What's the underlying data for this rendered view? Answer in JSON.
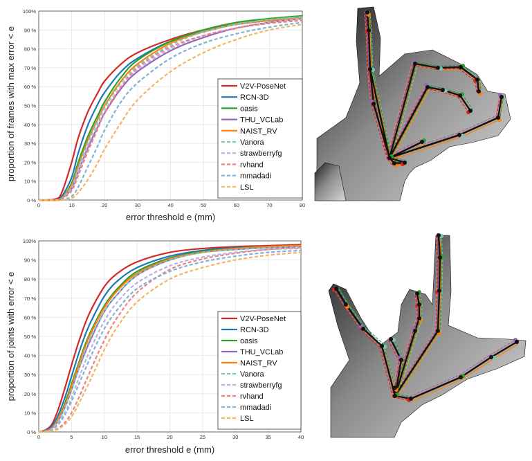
{
  "chart_data": [
    {
      "type": "line",
      "xlabel": "error threshold e (mm)",
      "ylabel": "proportion of frames with max error < e",
      "xlim": [
        0,
        80
      ],
      "ylim": [
        0,
        100
      ],
      "x_ticks": [
        "0",
        "10",
        "20",
        "30",
        "40",
        "50",
        "60",
        "70",
        "80"
      ],
      "y_ticks": [
        "0 %",
        "10 %",
        "20 %",
        "30 %",
        "40 %",
        "50 %",
        "60 %",
        "70 %",
        "80 %",
        "90 %",
        "100%"
      ],
      "grid": true,
      "legend_position": "bottom-right",
      "series": [
        {
          "name": "V2V-PoseNet",
          "color": "#d62728",
          "dash": "solid",
          "x": [
            0,
            5,
            7,
            10,
            12,
            15,
            18,
            20,
            25,
            30,
            40,
            50,
            60,
            70,
            80
          ],
          "y": [
            0,
            0.5,
            4,
            20,
            33,
            47,
            57,
            63,
            72,
            78,
            85,
            90,
            93,
            95,
            96
          ]
        },
        {
          "name": "RCN-3D",
          "color": "#1f77b4",
          "dash": "solid",
          "x": [
            0,
            5,
            7,
            10,
            12,
            15,
            18,
            20,
            25,
            30,
            40,
            50,
            60,
            70,
            80
          ],
          "y": [
            0,
            0,
            2,
            12,
            25,
            40,
            51,
            57,
            68,
            75,
            84,
            89,
            93,
            95,
            96
          ]
        },
        {
          "name": "oasis",
          "color": "#2ca02c",
          "dash": "solid",
          "x": [
            0,
            5,
            7,
            10,
            12,
            15,
            18,
            20,
            25,
            30,
            40,
            50,
            60,
            70,
            80
          ],
          "y": [
            0,
            0,
            1,
            9,
            20,
            34,
            45,
            52,
            65,
            74,
            84,
            90,
            94,
            96,
            97.5
          ]
        },
        {
          "name": "THU_VCLab",
          "color": "#9467bd",
          "dash": "solid",
          "x": [
            0,
            5,
            7,
            10,
            12,
            15,
            18,
            20,
            25,
            30,
            40,
            50,
            60,
            70,
            80
          ],
          "y": [
            0,
            0,
            1,
            6,
            15,
            28,
            39,
            46,
            59,
            68,
            79,
            86,
            91,
            94,
            96
          ]
        },
        {
          "name": "NAIST_RV",
          "color": "#ff7f0e",
          "dash": "solid",
          "x": [
            0,
            5,
            7,
            10,
            12,
            15,
            18,
            20,
            25,
            30,
            40,
            50,
            60,
            70,
            80
          ],
          "y": [
            0,
            0,
            1,
            8,
            18,
            32,
            43,
            50,
            63,
            72,
            83,
            89,
            93,
            95,
            96.5
          ]
        },
        {
          "name": "Vanora",
          "color": "#76c7c0",
          "dash": "dashed",
          "x": [
            0,
            5,
            7,
            10,
            12,
            15,
            18,
            20,
            25,
            30,
            40,
            50,
            60,
            70,
            80
          ],
          "y": [
            0,
            0,
            1,
            7,
            17,
            31,
            42,
            49,
            62,
            71,
            82,
            89,
            93,
            95.5,
            97
          ]
        },
        {
          "name": "strawberryfg",
          "color": "#b9b0dd",
          "dash": "dashed",
          "x": [
            0,
            5,
            7,
            10,
            12,
            15,
            18,
            20,
            25,
            30,
            40,
            50,
            60,
            70,
            80
          ],
          "y": [
            0,
            0,
            0.5,
            6,
            15,
            29,
            40,
            47,
            60,
            69,
            80,
            87,
            91,
            94,
            96
          ]
        },
        {
          "name": "rvhand",
          "color": "#f08080",
          "dash": "dashed",
          "x": [
            0,
            5,
            7,
            10,
            12,
            15,
            18,
            20,
            25,
            30,
            40,
            50,
            60,
            70,
            80
          ],
          "y": [
            0,
            0,
            0.5,
            5,
            13,
            26,
            38,
            46,
            60,
            70,
            81,
            87,
            91,
            93.5,
            95
          ]
        },
        {
          "name": "mmadadi",
          "color": "#7fb2d8",
          "dash": "dashed",
          "x": [
            0,
            5,
            7,
            10,
            12,
            15,
            18,
            20,
            25,
            30,
            40,
            50,
            60,
            70,
            80
          ],
          "y": [
            0,
            0,
            0,
            2,
            7,
            18,
            29,
            37,
            52,
            62,
            75,
            83,
            88,
            91.5,
            94
          ]
        },
        {
          "name": "LSL",
          "color": "#f5b461",
          "dash": "dashed",
          "x": [
            0,
            5,
            7,
            10,
            12,
            15,
            18,
            20,
            25,
            30,
            40,
            50,
            60,
            70,
            80
          ],
          "y": [
            0,
            0,
            0,
            1,
            4,
            11,
            20,
            27,
            41,
            53,
            68,
            78,
            85,
            90,
            93
          ]
        }
      ]
    },
    {
      "type": "line",
      "xlabel": "error threshold e (mm)",
      "ylabel": "proportion of joints with error < e",
      "xlim": [
        0,
        40
      ],
      "ylim": [
        0,
        100
      ],
      "x_ticks": [
        "0",
        "5",
        "10",
        "15",
        "20",
        "25",
        "30",
        "35",
        "40"
      ],
      "y_ticks": [
        "0 %",
        "10 %",
        "20 %",
        "30 %",
        "40 %",
        "50 %",
        "60 %",
        "70 %",
        "80 %",
        "90 %",
        "100%"
      ],
      "grid": true,
      "legend_position": "bottom-right",
      "series": [
        {
          "name": "V2V-PoseNet",
          "color": "#d62728",
          "dash": "solid",
          "x": [
            0,
            1,
            2,
            3,
            4,
            5,
            6,
            7,
            8,
            10,
            12,
            15,
            20,
            25,
            30,
            35,
            40
          ],
          "y": [
            0,
            1,
            4,
            12,
            23,
            35,
            46,
            56,
            64,
            76,
            83,
            89,
            94,
            96,
            97,
            97.5,
            98
          ]
        },
        {
          "name": "RCN-3D",
          "color": "#1f77b4",
          "dash": "solid",
          "x": [
            0,
            1,
            2,
            3,
            4,
            5,
            6,
            7,
            8,
            10,
            12,
            15,
            20,
            25,
            30,
            35,
            40
          ],
          "y": [
            0,
            0.5,
            3,
            9,
            18,
            29,
            40,
            50,
            58,
            71,
            79,
            86,
            92,
            95,
            96.5,
            97,
            97.5
          ]
        },
        {
          "name": "oasis",
          "color": "#2ca02c",
          "dash": "solid",
          "x": [
            0,
            1,
            2,
            3,
            4,
            5,
            6,
            7,
            8,
            10,
            12,
            15,
            20,
            25,
            30,
            35,
            40
          ],
          "y": [
            0,
            0.5,
            2,
            7,
            15,
            25,
            35,
            45,
            53,
            66,
            75,
            84,
            91,
            94.5,
            96,
            97,
            97.5
          ]
        },
        {
          "name": "THU_VCLab",
          "color": "#9467bd",
          "dash": "solid",
          "x": [
            0,
            1,
            2,
            3,
            4,
            5,
            6,
            7,
            8,
            10,
            12,
            15,
            20,
            25,
            30,
            35,
            40
          ],
          "y": [
            0,
            0.5,
            2,
            6,
            13,
            22,
            32,
            41,
            49,
            63,
            72,
            82,
            90,
            94,
            95.5,
            96.5,
            97
          ]
        },
        {
          "name": "NAIST_RV",
          "color": "#ff7f0e",
          "dash": "solid",
          "x": [
            0,
            1,
            2,
            3,
            4,
            5,
            6,
            7,
            8,
            10,
            12,
            15,
            20,
            25,
            30,
            35,
            40
          ],
          "y": [
            0,
            0.5,
            2,
            7,
            14,
            24,
            34,
            44,
            52,
            65,
            74,
            83,
            90.5,
            94,
            96,
            97,
            97.5
          ]
        },
        {
          "name": "Vanora",
          "color": "#76c7c0",
          "dash": "dashed",
          "x": [
            0,
            1,
            2,
            3,
            4,
            5,
            6,
            7,
            8,
            10,
            12,
            15,
            20,
            25,
            30,
            35,
            40
          ],
          "y": [
            0,
            0.5,
            2,
            6,
            13,
            22,
            32,
            42,
            50,
            63,
            72,
            82,
            90,
            94,
            95.5,
            96.5,
            97
          ]
        },
        {
          "name": "strawberryfg",
          "color": "#b9b0dd",
          "dash": "dashed",
          "x": [
            0,
            1,
            2,
            3,
            4,
            5,
            6,
            7,
            8,
            10,
            12,
            15,
            20,
            25,
            30,
            35,
            40
          ],
          "y": [
            0,
            0.5,
            1.5,
            5,
            10,
            18,
            27,
            36,
            44,
            58,
            68,
            78,
            87,
            91.5,
            94,
            95.5,
            96
          ]
        },
        {
          "name": "rvhand",
          "color": "#f08080",
          "dash": "dashed",
          "x": [
            0,
            1,
            2,
            3,
            4,
            5,
            6,
            7,
            8,
            10,
            12,
            15,
            20,
            25,
            30,
            35,
            40
          ],
          "y": [
            0,
            0,
            0.5,
            2,
            5,
            10,
            17,
            25,
            33,
            48,
            60,
            73,
            85,
            90.5,
            93.5,
            95.5,
            96.5
          ]
        },
        {
          "name": "mmadadi",
          "color": "#7fb2d8",
          "dash": "dashed",
          "x": [
            0,
            1,
            2,
            3,
            4,
            5,
            6,
            7,
            8,
            10,
            12,
            15,
            20,
            25,
            30,
            35,
            40
          ],
          "y": [
            0,
            0.5,
            1,
            4,
            9,
            16,
            24,
            32,
            40,
            54,
            64,
            75,
            84,
            89,
            92,
            94,
            95
          ]
        },
        {
          "name": "LSL",
          "color": "#f5b461",
          "dash": "dashed",
          "x": [
            0,
            1,
            2,
            3,
            4,
            5,
            6,
            7,
            8,
            10,
            12,
            15,
            20,
            25,
            30,
            35,
            40
          ],
          "y": [
            0,
            0,
            0.5,
            1.5,
            4,
            8,
            14,
            21,
            28,
            43,
            55,
            68,
            80,
            86,
            90,
            92.5,
            94
          ]
        }
      ]
    }
  ],
  "hand_figures": [
    {
      "icon": "depth-hand-pose-frames"
    },
    {
      "icon": "depth-hand-pose-joints"
    }
  ]
}
